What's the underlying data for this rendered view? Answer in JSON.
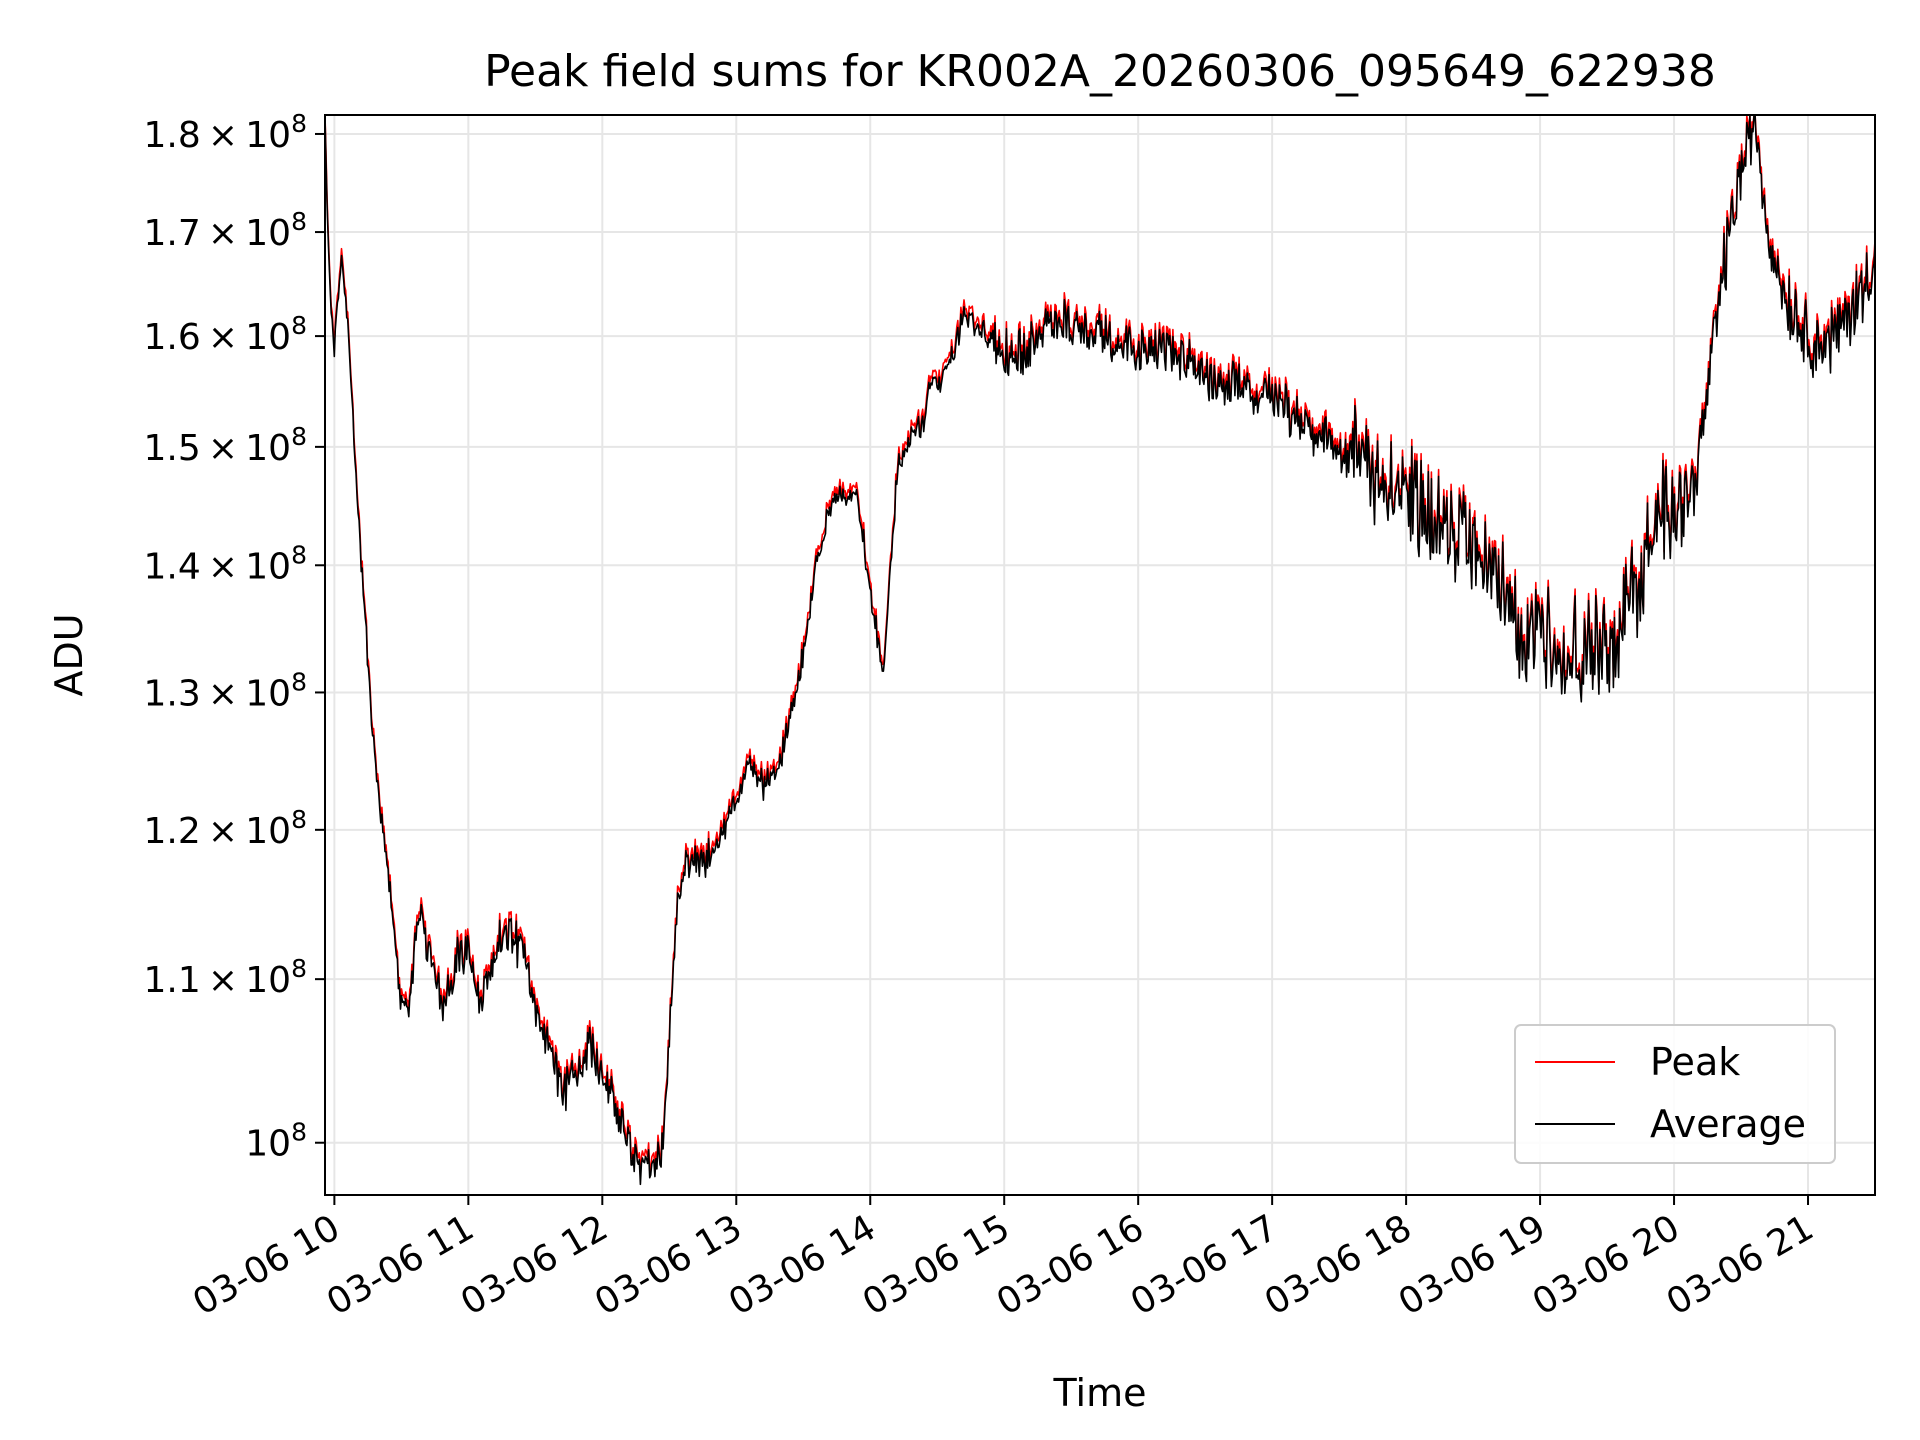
{
  "chart_data": {
    "type": "line",
    "title": "Peak field sums for KR002A_20260306_095649_622938",
    "xlabel": "Time",
    "ylabel": "ADU",
    "yscale": "log",
    "ylim": [
      97000000,
      182000000
    ],
    "xlim_hours": [
      9.93,
      21.5
    ],
    "grid": true,
    "legend_position": "lower-right",
    "x_ticks": [
      {
        "hour": 10,
        "label": "03-06 10"
      },
      {
        "hour": 11,
        "label": "03-06 11"
      },
      {
        "hour": 12,
        "label": "03-06 12"
      },
      {
        "hour": 13,
        "label": "03-06 13"
      },
      {
        "hour": 14,
        "label": "03-06 14"
      },
      {
        "hour": 15,
        "label": "03-06 15"
      },
      {
        "hour": 16,
        "label": "03-06 16"
      },
      {
        "hour": 17,
        "label": "03-06 17"
      },
      {
        "hour": 18,
        "label": "03-06 18"
      },
      {
        "hour": 19,
        "label": "03-06 19"
      },
      {
        "hour": 20,
        "label": "03-06 20"
      },
      {
        "hour": 21,
        "label": "03-06 21"
      }
    ],
    "y_ticks": [
      {
        "value": 100000000,
        "mantissa": "",
        "exponent": "8"
      },
      {
        "value": 110000000,
        "mantissa": "1.1",
        "exponent": "8"
      },
      {
        "value": 120000000,
        "mantissa": "1.2",
        "exponent": "8"
      },
      {
        "value": 130000000,
        "mantissa": "1.3",
        "exponent": "8"
      },
      {
        "value": 140000000,
        "mantissa": "1.4",
        "exponent": "8"
      },
      {
        "value": 150000000,
        "mantissa": "1.5",
        "exponent": "8"
      },
      {
        "value": 160000000,
        "mantissa": "1.6",
        "exponent": "8"
      },
      {
        "value": 170000000,
        "mantissa": "1.7",
        "exponent": "8"
      },
      {
        "value": 180000000,
        "mantissa": "1.8",
        "exponent": "8"
      }
    ],
    "series": [
      {
        "name": "Peak",
        "color": "#ff0000",
        "offset_factor": 1.004
      },
      {
        "name": "Average",
        "color": "#000000",
        "offset_factor": 1.0
      }
    ],
    "anchors_hours": [
      9.93,
      9.96,
      10.0,
      10.05,
      10.1,
      10.15,
      10.2,
      10.3,
      10.4,
      10.5,
      10.55,
      10.6,
      10.65,
      10.7,
      10.8,
      10.9,
      11.0,
      11.1,
      11.2,
      11.3,
      11.4,
      11.5,
      11.6,
      11.7,
      11.8,
      11.9,
      12.0,
      12.1,
      12.2,
      12.3,
      12.4,
      12.45,
      12.5,
      12.55,
      12.6,
      12.7,
      12.8,
      12.9,
      13.0,
      13.1,
      13.2,
      13.3,
      13.4,
      13.5,
      13.6,
      13.7,
      13.8,
      13.9,
      14.0,
      14.1,
      14.2,
      14.3,
      14.4,
      14.45,
      14.5,
      14.6,
      14.7,
      14.8,
      14.9,
      15.0,
      15.2,
      15.4,
      15.6,
      15.8,
      16.0,
      16.2,
      16.5,
      16.8,
      17.0,
      17.2,
      17.5,
      17.8,
      18.0,
      18.2,
      18.5,
      18.7,
      18.9,
      19.0,
      19.2,
      19.5,
      19.7,
      19.8,
      19.9,
      20.0,
      20.1,
      20.2,
      20.3,
      20.4,
      20.5,
      20.6,
      20.7,
      20.8,
      20.9,
      21.0,
      21.1,
      21.2,
      21.3,
      21.4,
      21.45,
      21.5
    ],
    "anchors_adu": [
      181000000,
      166000000,
      158000000,
      168000000,
      162000000,
      150000000,
      140000000,
      125000000,
      117000000,
      108000000,
      108000000,
      112000000,
      114000000,
      112000000,
      108000000,
      111000000,
      112000000,
      108000000,
      112000000,
      113000000,
      112000000,
      108000000,
      106000000,
      103000000,
      104000000,
      106000000,
      104000000,
      102000000,
      100000000,
      98000000,
      99000000,
      99500000,
      106000000,
      114000000,
      117000000,
      118000000,
      118000000,
      120000000,
      122000000,
      125000000,
      123000000,
      124000000,
      128000000,
      133000000,
      140000000,
      145000000,
      146000000,
      146000000,
      138000000,
      131000000,
      148000000,
      151000000,
      152000000,
      156000000,
      155000000,
      158000000,
      162000000,
      161000000,
      160000000,
      158000000,
      159000000,
      162000000,
      160000000,
      160000000,
      159000000,
      159000000,
      156000000,
      155000000,
      155000000,
      152000000,
      150000000,
      147000000,
      146000000,
      144000000,
      141000000,
      138000000,
      134000000,
      135000000,
      133000000,
      133000000,
      138000000,
      141000000,
      144000000,
      146000000,
      145000000,
      150000000,
      160000000,
      169000000,
      176000000,
      182000000,
      170000000,
      165000000,
      162000000,
      160000000,
      159000000,
      160000000,
      162000000,
      164000000,
      166000000,
      168000000
    ]
  }
}
